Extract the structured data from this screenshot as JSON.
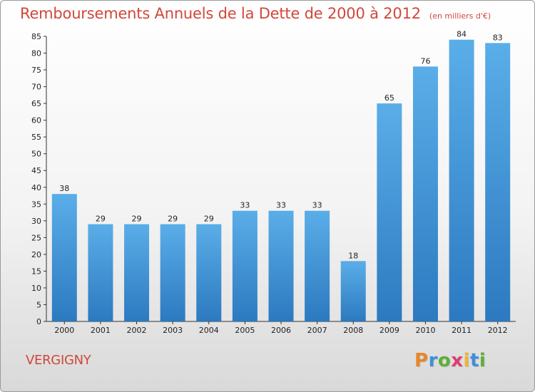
{
  "header": {
    "title": "Remboursements Annuels de la Dette de 2000 à 2012",
    "unit": "(en milliers d'€)"
  },
  "footer": {
    "place": "VERGIGNY",
    "logo": "Proxiti",
    "logo_colors": [
      "#e8862a",
      "#3f8fd8",
      "#5fae37",
      "#e03c6f",
      "#f2b233",
      "#3f8fd8",
      "#5fae37"
    ]
  },
  "colors": {
    "bar_light": "#5aaee8",
    "bar_dark": "#2c79c0",
    "text_red": "#d1473a",
    "axis": "#333333"
  },
  "chart_data": {
    "type": "bar",
    "categories": [
      "2000",
      "2001",
      "2002",
      "2003",
      "2004",
      "2005",
      "2006",
      "2007",
      "2008",
      "2009",
      "2010",
      "2011",
      "2012"
    ],
    "values": [
      38,
      29,
      29,
      29,
      29,
      33,
      33,
      33,
      18,
      65,
      76,
      84,
      83
    ],
    "title": "Remboursements Annuels de la Dette de 2000 à 2012",
    "ylim": [
      0,
      85
    ],
    "yticks": [
      0,
      5,
      10,
      15,
      20,
      25,
      30,
      35,
      40,
      45,
      50,
      55,
      60,
      65,
      70,
      75,
      80,
      85
    ],
    "grid": false,
    "data_labels": true
  }
}
